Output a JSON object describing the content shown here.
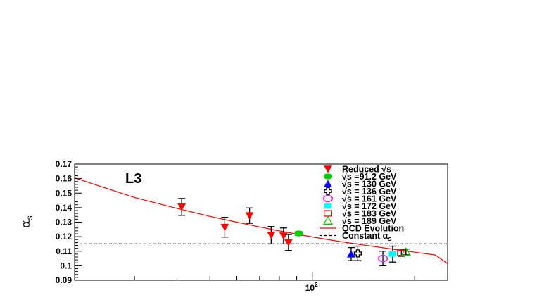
{
  "chart_data": {
    "type": "scatter",
    "title": "",
    "experiment_label": "L3",
    "xlabel": "",
    "ylabel": "αs",
    "ylabel_main": "α",
    "ylabel_sub": "s",
    "xscale": "log",
    "xlim": [
      20,
      250
    ],
    "ylim": [
      0.09,
      0.17
    ],
    "yticks": [
      "0.09",
      "0.1",
      "0.11",
      "0.12",
      "0.13",
      "0.14",
      "0.15",
      "0.16",
      "0.17"
    ],
    "xtick_base": "10",
    "xtick_exp": "2",
    "legend_position": "top-right",
    "series": [
      {
        "name": "Reduced √s",
        "marker": "triangle-down",
        "color": "#ff0000",
        "points": [
          {
            "x": 41.3,
            "y": 0.1405,
            "err": 0.0058
          },
          {
            "x": 55.3,
            "y": 0.1265,
            "err": 0.0068
          },
          {
            "x": 65.4,
            "y": 0.1345,
            "err": 0.0053
          },
          {
            "x": 75.7,
            "y": 0.121,
            "err": 0.006
          },
          {
            "x": 82.3,
            "y": 0.1205,
            "err": 0.0055
          },
          {
            "x": 85.1,
            "y": 0.116,
            "err": 0.0055
          }
        ]
      },
      {
        "name": "√s =91.2 GeV",
        "marker": "circle",
        "color": "#00cc00",
        "points": [
          {
            "x": 91.2,
            "y": 0.1222,
            "err": 0.0013
          }
        ]
      },
      {
        "name": "√s = 130 GeV",
        "marker": "triangle-up",
        "color": "#0000ff",
        "points": [
          {
            "x": 130.1,
            "y": 0.108,
            "err": 0.0045
          }
        ]
      },
      {
        "name": "√s = 136 GeV",
        "marker": "open-cross",
        "color": "#000000",
        "points": [
          {
            "x": 136.1,
            "y": 0.1085,
            "err": 0.005
          }
        ]
      },
      {
        "name": "√s = 161 GeV",
        "marker": "open-circle",
        "color": "#ff00ff",
        "points": [
          {
            "x": 161.3,
            "y": 0.105,
            "err": 0.005
          }
        ]
      },
      {
        "name": "√s = 172 GeV",
        "marker": "square",
        "color": "#00ffff",
        "points": [
          {
            "x": 172.3,
            "y": 0.108,
            "err": 0.0055
          }
        ]
      },
      {
        "name": "√s = 183 GeV",
        "marker": "open-square",
        "color": "#ff0000",
        "points": [
          {
            "x": 182.8,
            "y": 0.109,
            "err": 0.0025
          }
        ]
      },
      {
        "name": "√s = 189 GeV",
        "marker": "open-triangle-up",
        "color": "#00cc00",
        "points": [
          {
            "x": 188.6,
            "y": 0.1095,
            "err": 0.002
          }
        ]
      }
    ],
    "lines": [
      {
        "name": "QCD Evolution",
        "style": "solid",
        "color": "#ff0000",
        "x": [
          20,
          30,
          40,
          50,
          60,
          70,
          80,
          91.2,
          100,
          120,
          140,
          160,
          180,
          200,
          230,
          250
        ],
        "y": [
          0.1605,
          0.147,
          0.1395,
          0.134,
          0.13,
          0.1267,
          0.124,
          0.1215,
          0.1198,
          0.1167,
          0.1144,
          0.1125,
          0.1108,
          0.1093,
          0.1074,
          0.1014
        ]
      },
      {
        "name": "Constant αs",
        "label_main": "Constant α",
        "label_sub": "s",
        "style": "dashed",
        "color": "#000000",
        "x": [
          20,
          250
        ],
        "y": [
          0.115,
          0.115
        ]
      }
    ]
  }
}
